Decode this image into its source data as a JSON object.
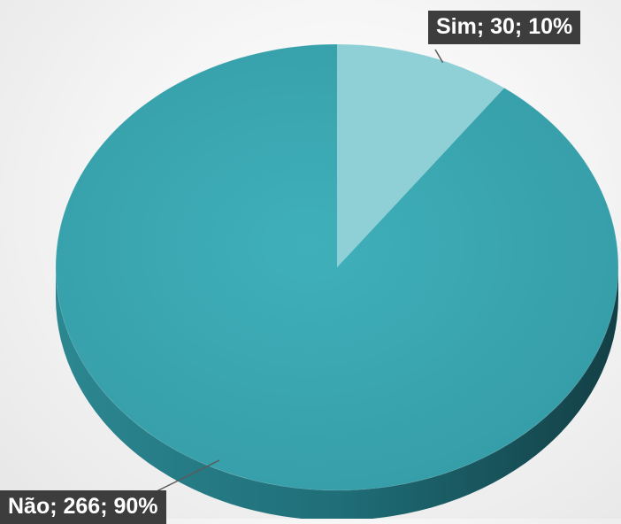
{
  "chart_data": {
    "type": "pie",
    "style": "3d-pie",
    "series": [
      {
        "values": [
          30,
          266
        ],
        "categories": [
          "Sim",
          "Não"
        ],
        "percentages": [
          10,
          90
        ]
      }
    ],
    "slices": [
      {
        "label": "Sim",
        "value": 30,
        "percent": 10,
        "color": "#8FCFD6"
      },
      {
        "label": "Não",
        "value": 266,
        "percent": 90,
        "color": "#3BA6B0"
      }
    ],
    "data_labels": [
      "Sim; 30; 10%",
      "Não; 266; 90%"
    ],
    "side_colors": {
      "Não": "#1F6E78",
      "Sim": "#5C9FA7"
    },
    "legend": "none",
    "title": ""
  }
}
